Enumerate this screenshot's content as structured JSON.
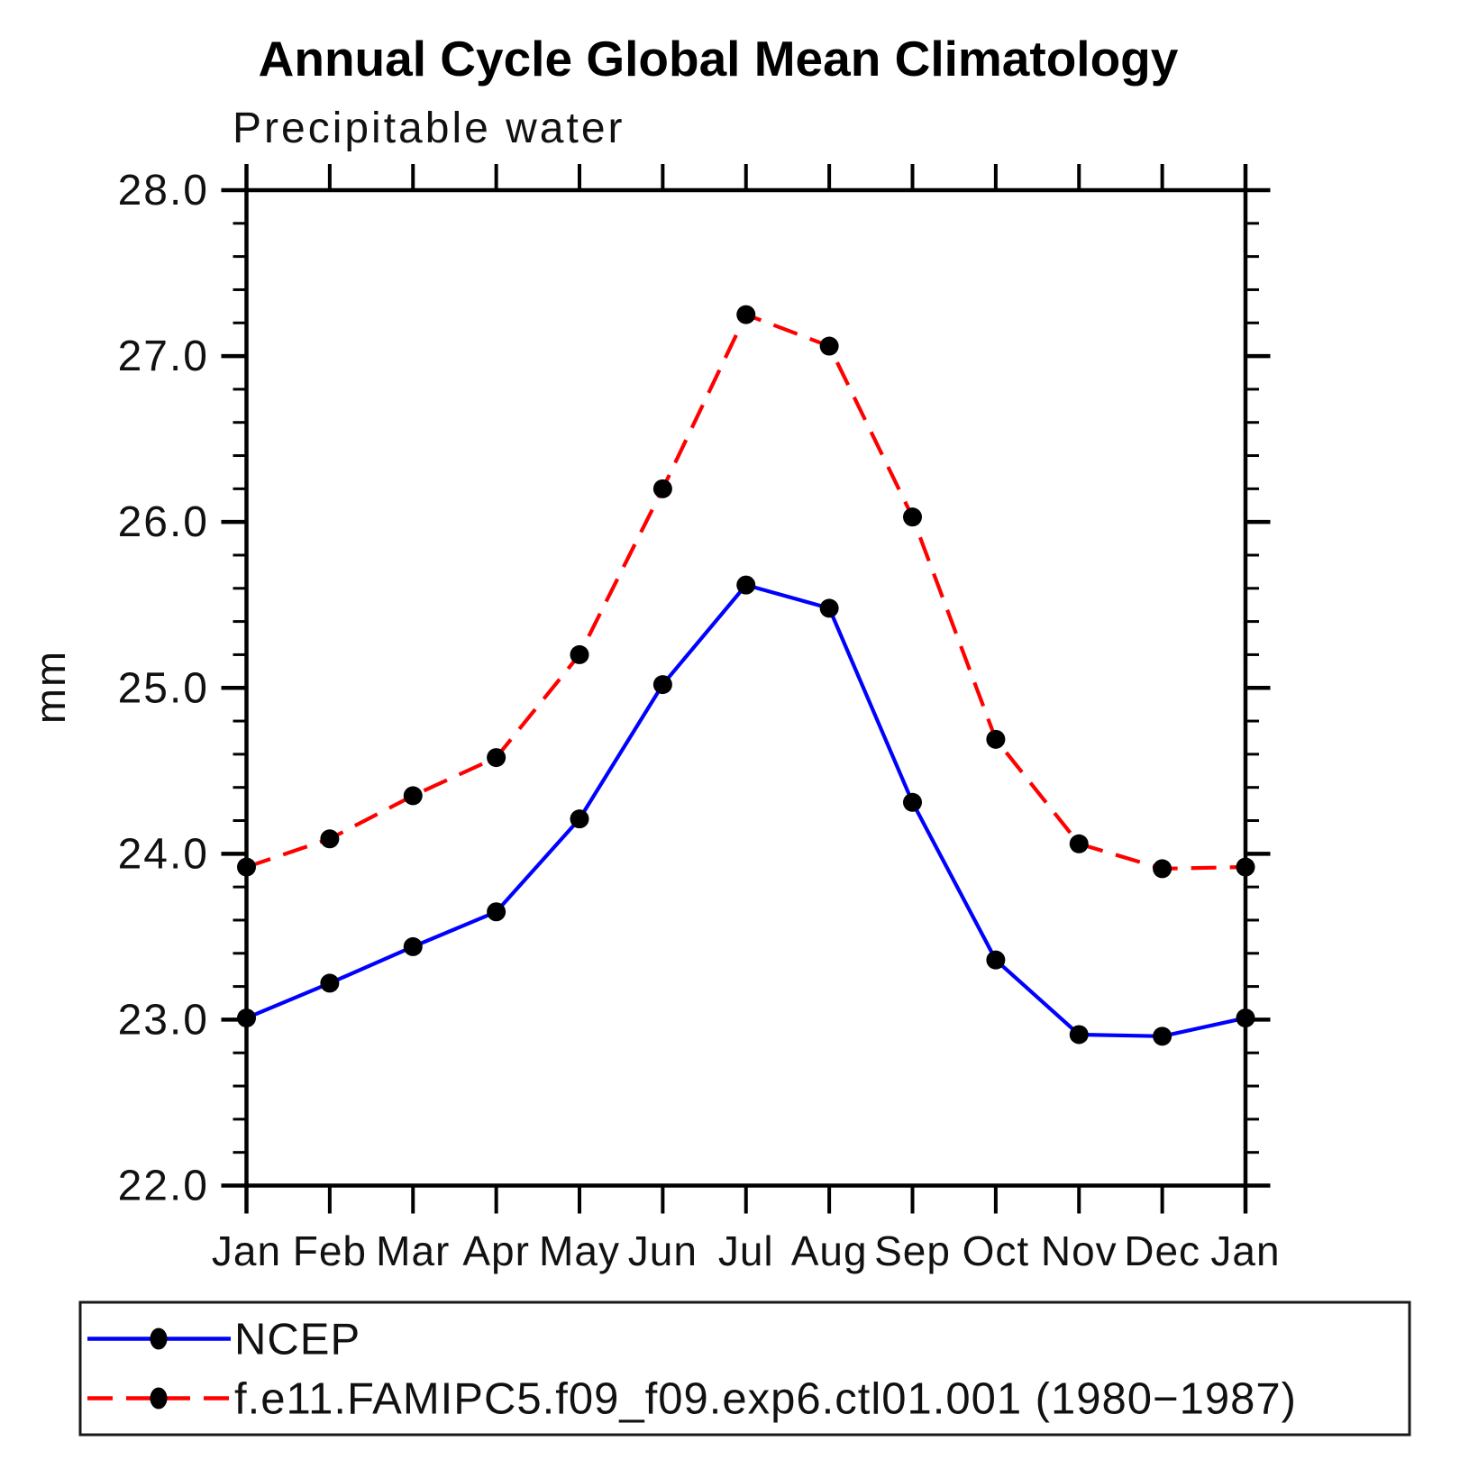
{
  "chart_data": {
    "type": "line",
    "title": "Annual Cycle Global Mean Climatology",
    "subtitle": "Precipitable water",
    "ylabel": "mm",
    "ylim": [
      22.0,
      28.0
    ],
    "yticks_major": [
      22.0,
      23.0,
      24.0,
      25.0,
      26.0,
      27.0,
      28.0
    ],
    "ytick_labels": [
      "22.0",
      "23.0",
      "24.0",
      "25.0",
      "26.0",
      "27.0",
      "28.0"
    ],
    "ytick_minor_step": 0.2,
    "grid": false,
    "legend_position": "bottom-left-box",
    "categories": [
      "Jan",
      "Feb",
      "Mar",
      "Apr",
      "May",
      "Jun",
      "Jul",
      "Aug",
      "Sep",
      "Oct",
      "Nov",
      "Dec",
      "Jan"
    ],
    "series": [
      {
        "name": "NCEP",
        "color": "#0000ff",
        "style": "solid",
        "marker": "filled-circle",
        "marker_color": "#000000",
        "values": [
          23.01,
          23.22,
          23.44,
          23.65,
          24.21,
          25.02,
          25.62,
          25.48,
          24.31,
          23.36,
          22.91,
          22.9,
          23.01
        ]
      },
      {
        "name": "f.e11.FAMIPC5.f09_f09.exp6.ctl01.001 (1980−1987)",
        "color": "#ff0000",
        "style": "dashed",
        "marker": "filled-circle",
        "marker_color": "#000000",
        "values": [
          23.92,
          24.09,
          24.35,
          24.58,
          25.2,
          26.2,
          27.25,
          27.06,
          26.03,
          24.69,
          24.06,
          23.91,
          23.92
        ]
      }
    ]
  }
}
